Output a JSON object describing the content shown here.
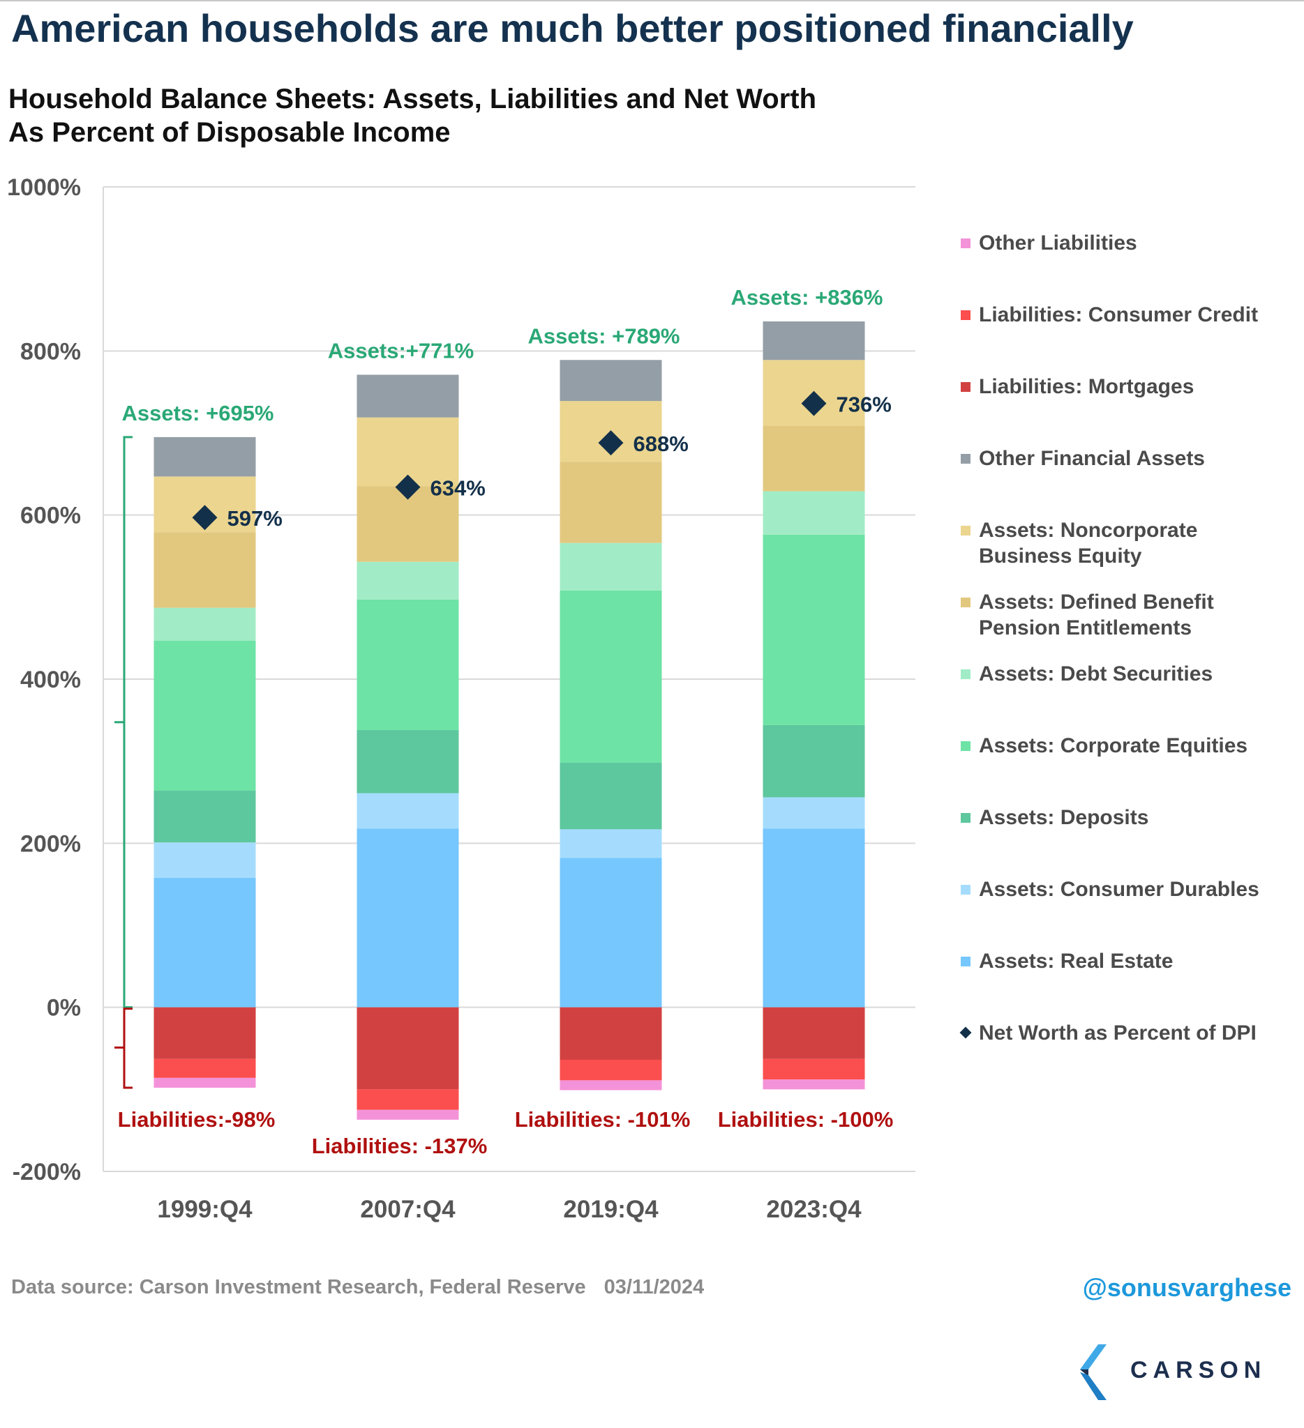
{
  "headline": "American households are much better positioned financially",
  "chart_title_line1": "Household Balance Sheets: Assets, Liabilities and Net Worth",
  "chart_title_line2": "As Percent of Disposable Income",
  "source": "Data source: Carson Investment Research, Federal Reserve",
  "date": "03/11/2024",
  "handle": "@sonusvarghese",
  "logo_text": "CARSON",
  "colors": {
    "headline": "#14324f",
    "assets_annotation": "#2aa876",
    "liabilities_annotation": "#b01010",
    "net_worth_marker": "#13304a",
    "handle": "#1c98db"
  },
  "chart_data": {
    "type": "bar",
    "stacked": true,
    "categories": [
      "1999:Q4",
      "2007:Q4",
      "2019:Q4",
      "2023:Q4"
    ],
    "ylim": [
      -200,
      1000
    ],
    "yticks": [
      -200,
      0,
      200,
      400,
      600,
      800,
      1000
    ],
    "ytick_labels": [
      "-200%",
      "0%",
      "200%",
      "400%",
      "600%",
      "800%",
      "1000%"
    ],
    "grid": true,
    "legend_position": "right",
    "series": [
      {
        "name": "Assets: Real Estate",
        "color": "#76c7fd",
        "values": [
          158,
          218,
          182,
          218
        ]
      },
      {
        "name": "Assets: Consumer Durables",
        "color": "#a5dcfd",
        "values": [
          43,
          43,
          35,
          38
        ]
      },
      {
        "name": "Assets: Deposits",
        "color": "#5dc79e",
        "values": [
          63,
          77,
          81,
          88
        ]
      },
      {
        "name": "Assets: Corporate Equities",
        "color": "#6ee3a6",
        "values": [
          183,
          159,
          210,
          232
        ]
      },
      {
        "name": "Assets: Debt Securities",
        "color": "#a1ecc6",
        "values": [
          40,
          46,
          58,
          53
        ]
      },
      {
        "name": "Assets: Defined Benefit Pension Entitlements",
        "color": "#e2c87f",
        "values": [
          92,
          92,
          99,
          80
        ]
      },
      {
        "name": "Assets: Noncorporate Business Equity",
        "color": "#ebd58f",
        "values": [
          68,
          84,
          74,
          80
        ]
      },
      {
        "name": "Other Financial Assets",
        "color": "#949ea6",
        "values": [
          48,
          52,
          50,
          47
        ]
      },
      {
        "name": "Liabilities: Mortgages",
        "color": "#d24141",
        "values": [
          -63,
          -100,
          -64,
          -63
        ]
      },
      {
        "name": "Liabilities: Consumer Credit",
        "color": "#fb4e4e",
        "values": [
          -23,
          -25,
          -25,
          -25
        ]
      },
      {
        "name": "Other Liabilities",
        "color": "#f492d9",
        "values": [
          -12,
          -12,
          -12,
          -12
        ]
      }
    ],
    "net_worth": {
      "name": "Net Worth as Percent of DPI",
      "values": [
        597,
        634,
        688,
        736
      ],
      "labels": [
        "597%",
        "634%",
        "688%",
        "736%"
      ]
    },
    "asset_totals": [
      695,
      771,
      789,
      836
    ],
    "asset_labels": [
      "Assets: +695%",
      "Assets:+771%",
      "Assets: +789%",
      "Assets: +836%"
    ],
    "liability_totals": [
      -98,
      -137,
      -101,
      -100
    ],
    "liability_labels": [
      "Liabilities:-98%",
      "Liabilities: -137%",
      "Liabilities: -101%",
      "Liabilities: -100%"
    ]
  },
  "legend_items": [
    {
      "label": "Other Liabilities",
      "color": "#f492d9",
      "marker": "square"
    },
    {
      "label": "Liabilities: Consumer Credit",
      "color": "#fb4e4e",
      "marker": "square"
    },
    {
      "label": "Liabilities: Mortgages",
      "color": "#d24141",
      "marker": "square"
    },
    {
      "label": "Other Financial Assets",
      "color": "#949ea6",
      "marker": "square"
    },
    {
      "label": "Assets: Noncorporate Business Equity",
      "color": "#ebd58f",
      "marker": "square"
    },
    {
      "label": "Assets: Defined Benefit Pension Entitlements",
      "color": "#e2c87f",
      "marker": "square"
    },
    {
      "label": "Assets: Debt Securities",
      "color": "#a1ecc6",
      "marker": "square"
    },
    {
      "label": "Assets: Corporate Equities",
      "color": "#6ee3a6",
      "marker": "square"
    },
    {
      "label": "Assets: Deposits",
      "color": "#5dc79e",
      "marker": "square"
    },
    {
      "label": "Assets: Consumer Durables",
      "color": "#a5dcfd",
      "marker": "square"
    },
    {
      "label": "Assets: Real Estate",
      "color": "#76c7fd",
      "marker": "square"
    },
    {
      "label": "Net Worth as Percent of DPI",
      "color": "#13304a",
      "marker": "diamond"
    }
  ]
}
